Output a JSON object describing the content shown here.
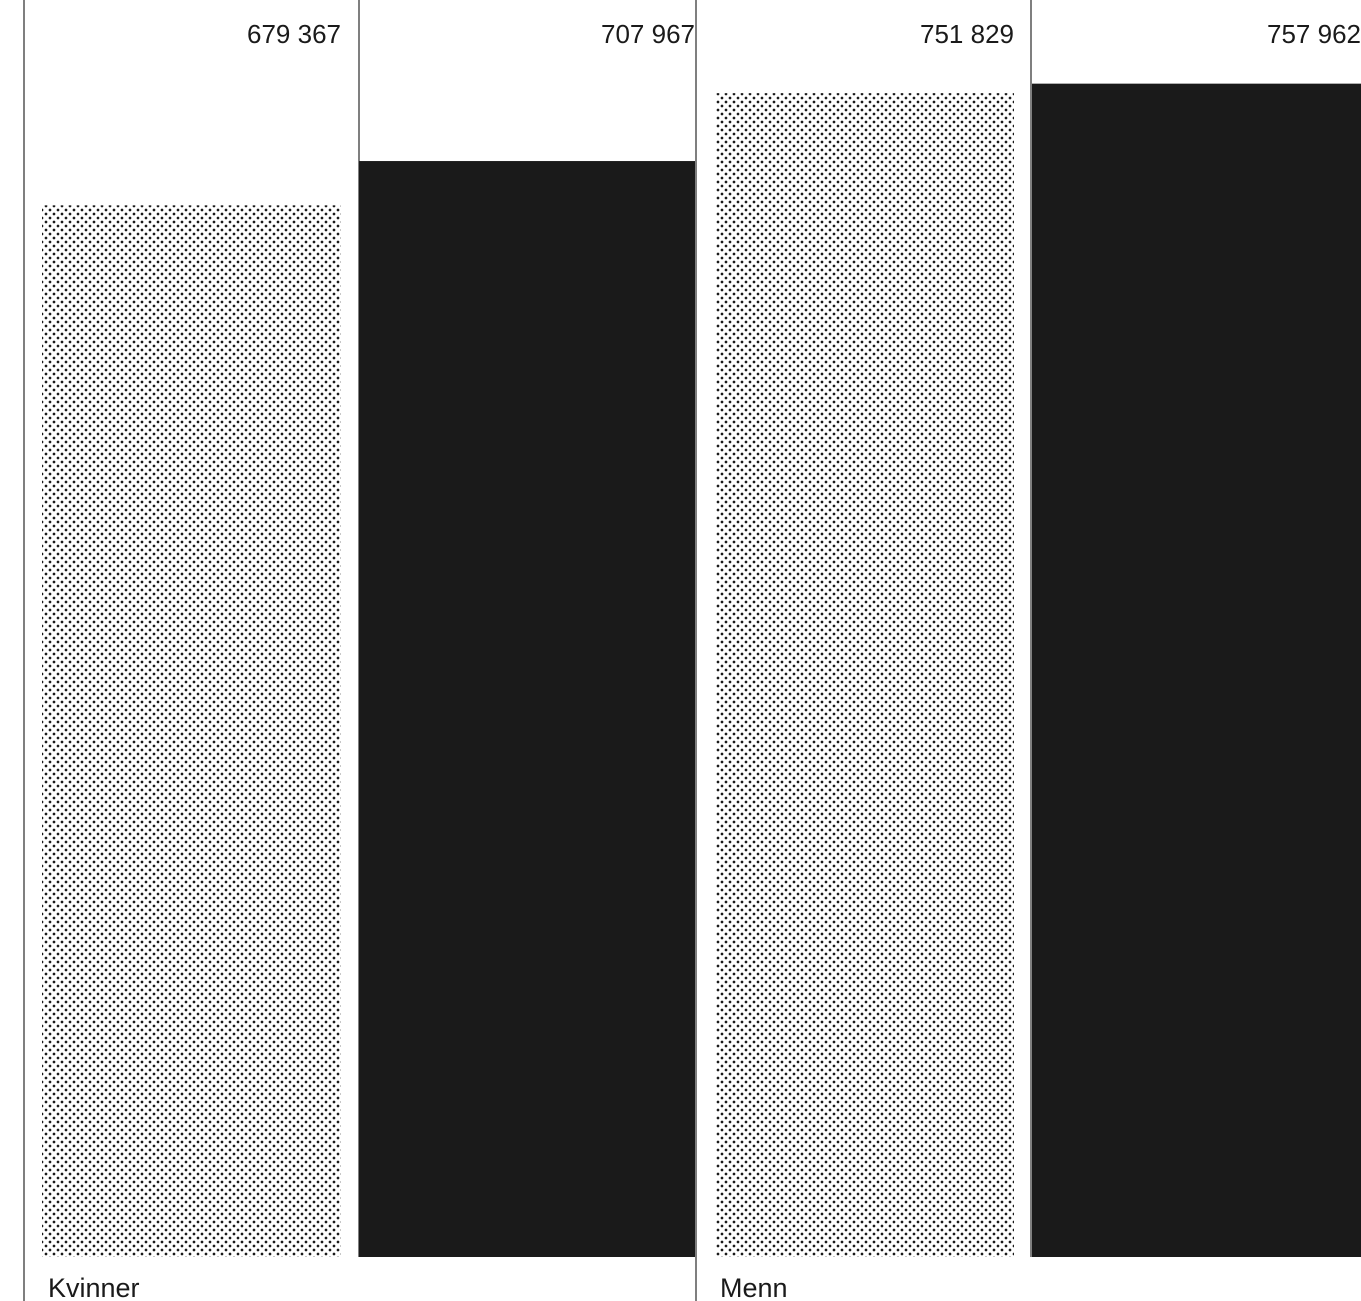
{
  "chart_data": {
    "type": "bar",
    "categories": [
      "Kvinner",
      "Menn"
    ],
    "series": [
      {
        "values": [
          679367,
          751829
        ],
        "style": "dotted",
        "color": "#1a1a1a"
      },
      {
        "values": [
          707967,
          757962
        ],
        "style": "solid",
        "color": "#1a1a1a"
      }
    ],
    "value_labels": [
      [
        "679 367",
        "751 829"
      ],
      [
        "707 967",
        "757 962"
      ]
    ],
    "ylim": [
      0,
      812000
    ],
    "grid": false,
    "colors": {
      "bar": "#1a1a1a",
      "dots": "#1a1a1a",
      "separator": "#555555",
      "text": "#1a1a1a"
    }
  }
}
